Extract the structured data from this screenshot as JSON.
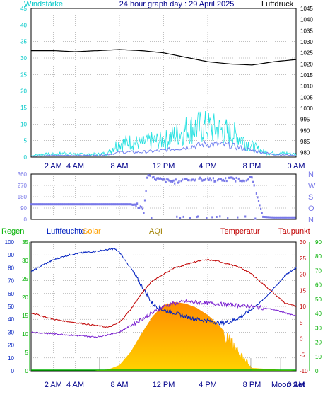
{
  "header": {
    "title": "24 hour graph day : 29 April 2025",
    "left_label": "Windstärke",
    "right_label": "Luftdruck"
  },
  "time_axis": {
    "ticks": [
      {
        "hour": 2,
        "label": "2 AM"
      },
      {
        "hour": 4,
        "label": "4 AM"
      },
      {
        "hour": 8,
        "label": "8 AM"
      },
      {
        "hour": 12,
        "label": "12 PM"
      },
      {
        "hour": 16,
        "label": "4 PM"
      },
      {
        "hour": 20,
        "label": "8 PM"
      },
      {
        "hour": 24,
        "label": "0 AM"
      }
    ]
  },
  "colors": {
    "background": "#ffffff",
    "plot_border": "#000000",
    "grid": "#808080",
    "windstarke": "#00c8c8",
    "gust": "#20e0e0",
    "wind_avg": "#7080f0",
    "pressure": "#000000",
    "winddir": "#7878e8",
    "regen": "#00b000",
    "luftfeuchte": "#0020c0",
    "solar": "#ffa000",
    "aqi": "#a08000",
    "temperatur": "#c00000",
    "taupunkt": "#c00000",
    "dewpoint_line": "#7a20d0"
  },
  "chart_data": [
    {
      "type": "line",
      "title": "24 hour graph day : 29 April 2025",
      "ylabel": "Windstärke",
      "y2label": "Luftdruck",
      "ylim": [
        0,
        45
      ],
      "y_ticks": [
        0,
        5,
        10,
        15,
        20,
        25,
        30,
        35,
        40,
        45
      ],
      "y2lim": [
        978,
        1045
      ],
      "y2_ticks": [
        980,
        985,
        990,
        995,
        1000,
        1005,
        1010,
        1015,
        1020,
        1025,
        1030,
        1035,
        1040,
        1045
      ],
      "grid": true,
      "series": [
        {
          "name": "Luftdruck",
          "axis": "right",
          "x": [
            0,
            2,
            4,
            6,
            8,
            10,
            12,
            14,
            16,
            18,
            20,
            22,
            24
          ],
          "values": [
            1026,
            1026,
            1025.5,
            1026,
            1026.5,
            1026,
            1025,
            1023,
            1021,
            1020,
            1019.5,
            1021,
            1022
          ]
        },
        {
          "axis": "left",
          "x": [
            0,
            1,
            2,
            3,
            4,
            5,
            6,
            7,
            7.5,
            8,
            9,
            10,
            11,
            12,
            13,
            14,
            15,
            16,
            17,
            18,
            19,
            20,
            21,
            22,
            23,
            24
          ],
          "values": [
            0.5,
            1,
            1,
            1.5,
            1,
            1,
            1,
            1.5,
            4,
            5,
            5.5,
            5,
            6,
            6,
            8,
            10,
            11,
            11,
            10,
            9,
            7,
            4,
            2,
            1.5,
            1.5,
            1
          ]
        },
        {
          "axis": "left",
          "x": [
            0,
            2,
            4,
            6,
            7.5,
            8,
            10,
            12,
            14,
            16,
            18,
            20,
            22,
            24
          ],
          "values": [
            0.3,
            0.5,
            0.5,
            0.5,
            1,
            1.5,
            1.5,
            2,
            3,
            4,
            3.5,
            2,
            0.8,
            0.5
          ]
        }
      ]
    },
    {
      "type": "scatter",
      "y_tick_labels": [
        "360",
        "270",
        "180",
        "90",
        "0"
      ],
      "direction_labels": [
        "N",
        "W",
        "S",
        "O",
        "N"
      ],
      "ylim": [
        0,
        360
      ],
      "grid": true,
      "series": [
        {
          "x": [
            0,
            2,
            4,
            6,
            8,
            9,
            9.5,
            10,
            10.2,
            10.5,
            11,
            12,
            13,
            14,
            15,
            16,
            17,
            18,
            19,
            20,
            21,
            22,
            23,
            24
          ],
          "values": [
            120,
            120,
            120,
            120,
            120,
            120,
            110,
            100,
            40,
            340,
            330,
            310,
            300,
            320,
            315,
            325,
            310,
            320,
            315,
            330,
            20,
            15,
            15,
            15
          ]
        }
      ]
    },
    {
      "type": "line",
      "legend": [
        "Regen",
        "Luftfeuchte",
        "Solar",
        "AQI",
        "Temperatur",
        "Taupunkt"
      ],
      "y_left_humidity": [
        0,
        10,
        20,
        30,
        40,
        50,
        60,
        70,
        80,
        90,
        100
      ],
      "y_left_rain": [
        0,
        5,
        10,
        15,
        20,
        25,
        30,
        35
      ],
      "y_right_temp": [
        -10,
        -5,
        0,
        5,
        10,
        15,
        20,
        25,
        30
      ],
      "y_right_aqi": [
        0,
        10,
        20,
        30,
        40,
        50,
        60,
        70,
        80,
        90
      ],
      "x_extra_labels": [
        "Moon Set"
      ],
      "grid": true,
      "series": [
        {
          "name": "Luftfeuchte",
          "axis": "humidity",
          "x": [
            0,
            1,
            2,
            3,
            4,
            5,
            6,
            7,
            7.5,
            8,
            9,
            10,
            11,
            12,
            13,
            14,
            15,
            16,
            17,
            18,
            19,
            20,
            21,
            22,
            23,
            24
          ],
          "values": [
            77,
            82,
            86,
            89,
            91,
            92,
            93,
            94,
            95,
            92,
            80,
            66,
            52,
            47,
            45,
            42,
            40,
            39,
            37,
            38,
            42,
            48,
            55,
            64,
            74,
            80
          ]
        },
        {
          "name": "Temperatur",
          "axis": "temp",
          "x": [
            0,
            1,
            2,
            3,
            4,
            5,
            6,
            7,
            8,
            9,
            10,
            11,
            12,
            13,
            14,
            15,
            16,
            17,
            18,
            19,
            20,
            21,
            22,
            23,
            24
          ],
          "values": [
            8,
            7,
            6,
            5.5,
            5,
            4.5,
            4,
            3.5,
            5,
            9,
            14,
            18,
            20,
            22,
            23,
            24,
            24.5,
            24,
            23,
            22,
            20,
            17,
            14,
            11,
            10
          ]
        },
        {
          "name": "Taupunkt",
          "axis": "temp",
          "x": [
            0,
            2,
            4,
            6,
            8,
            10,
            11,
            12,
            13,
            14,
            16,
            18,
            20,
            22,
            24
          ],
          "values": [
            2,
            1.5,
            1,
            0.5,
            2,
            6,
            8,
            10,
            11,
            11.5,
            11,
            10.5,
            10,
            9,
            7
          ]
        },
        {
          "name": "Solar",
          "axis": "aqi",
          "x": [
            0,
            5.8,
            6,
            7,
            8,
            9,
            10,
            11,
            12,
            13,
            14,
            15,
            16,
            17,
            18,
            19,
            19.5,
            20,
            24
          ],
          "values": [
            0,
            0,
            0.3,
            1,
            4,
            13,
            26,
            38,
            46,
            48,
            47,
            44,
            39,
            32,
            23,
            12,
            8,
            2,
            0
          ]
        }
      ]
    }
  ]
}
